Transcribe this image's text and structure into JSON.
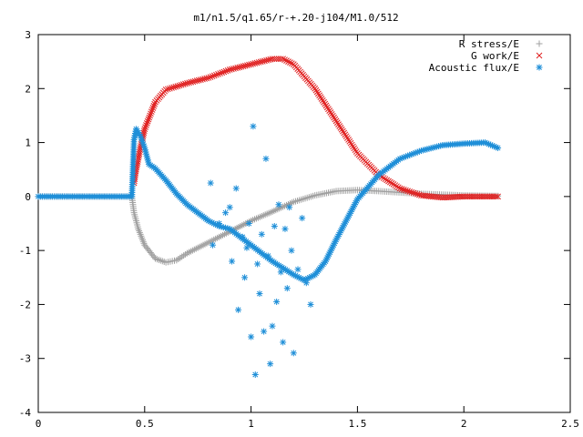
{
  "chart_data": {
    "type": "scatter",
    "title": "m1/n1.5/q1.65/r-+.20-j104/M1.0/512",
    "xlabel": "",
    "ylabel": "",
    "xlim": [
      0,
      2.5
    ],
    "ylim": [
      -4,
      3
    ],
    "x_ticks": [
      "0",
      "0.5",
      "1",
      "1.5",
      "2",
      "2.5"
    ],
    "y_ticks": [
      "3",
      "2",
      "1",
      "0",
      "-1",
      "-2",
      "-3",
      "-4"
    ],
    "grid": false,
    "legend_position": "top-right",
    "series": [
      {
        "name": "R stress/E",
        "marker": "plus",
        "color": "#a0a0a0",
        "x": [
          0.0,
          0.44,
          0.45,
          0.47,
          0.5,
          0.55,
          0.6,
          0.65,
          0.7,
          0.8,
          0.9,
          1.0,
          1.1,
          1.2,
          1.3,
          1.4,
          1.5,
          1.6,
          1.8,
          2.0,
          2.16
        ],
        "y": [
          0.0,
          0.0,
          -0.3,
          -0.6,
          -0.9,
          -1.15,
          -1.22,
          -1.18,
          -1.05,
          -0.85,
          -0.65,
          -0.45,
          -0.28,
          -0.1,
          0.02,
          0.1,
          0.12,
          0.1,
          0.05,
          0.02,
          0.01
        ]
      },
      {
        "name": "G work/E",
        "marker": "cross",
        "color": "#e02020",
        "x": [
          0.45,
          0.46,
          0.48,
          0.5,
          0.55,
          0.6,
          0.7,
          0.8,
          0.9,
          1.0,
          1.1,
          1.15,
          1.2,
          1.3,
          1.4,
          1.5,
          1.6,
          1.7,
          1.8,
          1.9,
          2.0,
          2.16
        ],
        "y": [
          0.25,
          0.5,
          0.9,
          1.25,
          1.75,
          1.98,
          2.1,
          2.2,
          2.35,
          2.45,
          2.55,
          2.55,
          2.45,
          2.0,
          1.4,
          0.8,
          0.4,
          0.15,
          0.02,
          -0.02,
          0.0,
          0.0
        ]
      },
      {
        "name": "Acoustic flux/E",
        "marker": "star",
        "color": "#1f8fd8",
        "x": [
          0.0,
          0.44,
          0.45,
          0.46,
          0.48,
          0.5,
          0.52,
          0.55,
          0.6,
          0.65,
          0.7,
          0.75,
          0.8,
          0.85,
          0.9,
          1.0,
          1.1,
          1.2,
          1.25,
          1.3,
          1.35,
          1.4,
          1.5,
          1.6,
          1.7,
          1.8,
          1.9,
          2.0,
          2.1,
          2.16
        ],
        "y": [
          0.0,
          0.0,
          1.05,
          1.25,
          1.12,
          0.9,
          0.6,
          0.52,
          0.3,
          0.05,
          -0.15,
          -0.3,
          -0.45,
          -0.55,
          -0.6,
          -0.9,
          -1.2,
          -1.45,
          -1.55,
          -1.45,
          -1.2,
          -0.8,
          -0.05,
          0.4,
          0.7,
          0.85,
          0.95,
          0.98,
          1.0,
          0.9
        ]
      },
      {
        "name": "",
        "marker": "star",
        "color": "#1f8fd8",
        "x": [
          0.81,
          0.82,
          0.85,
          0.88,
          0.9,
          0.91,
          0.93,
          0.94,
          0.96,
          0.97,
          0.98,
          0.99,
          1.0,
          1.01,
          1.02,
          1.03,
          1.04,
          1.05,
          1.06,
          1.07,
          1.08,
          1.09,
          1.1,
          1.11,
          1.12,
          1.13,
          1.14,
          1.15,
          1.16,
          1.17,
          1.18,
          1.19,
          1.2,
          1.22,
          1.24,
          1.26,
          1.28
        ],
        "y": [
          0.25,
          -0.9,
          -0.5,
          -0.3,
          -0.2,
          -1.2,
          0.15,
          -2.1,
          -0.75,
          -1.5,
          -0.95,
          -0.5,
          -2.6,
          1.3,
          -3.3,
          -1.25,
          -1.8,
          -0.7,
          -2.5,
          0.7,
          -1.1,
          -3.1,
          -2.4,
          -0.55,
          -1.95,
          -0.15,
          -1.4,
          -2.7,
          -0.6,
          -1.7,
          -0.2,
          -1.0,
          -2.9,
          -1.35,
          -0.4,
          -1.6,
          -2.0
        ]
      }
    ]
  }
}
